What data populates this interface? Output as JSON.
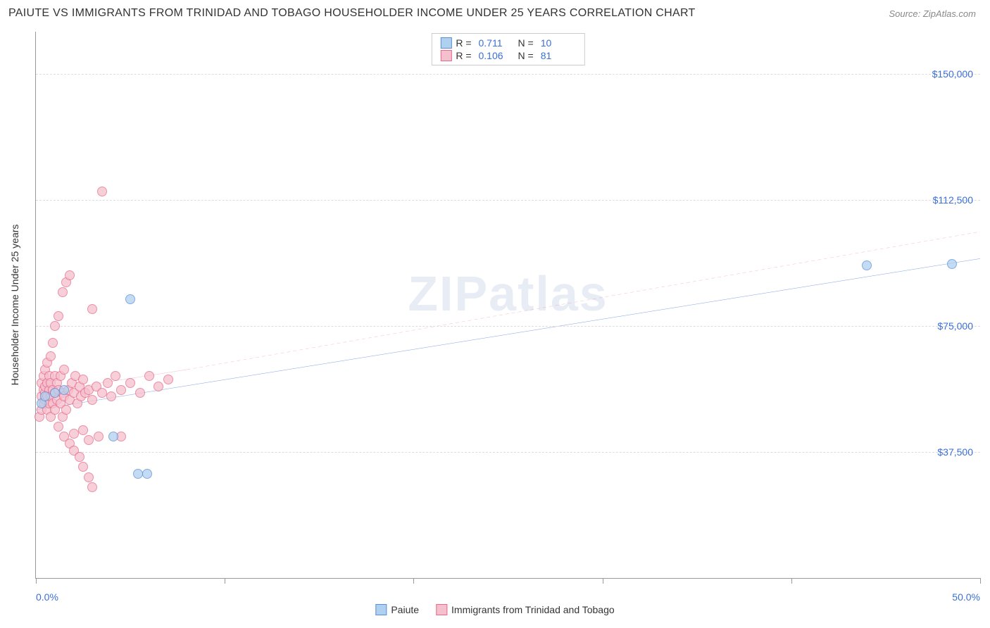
{
  "header": {
    "title": "PAIUTE VS IMMIGRANTS FROM TRINIDAD AND TOBAGO HOUSEHOLDER INCOME UNDER 25 YEARS CORRELATION CHART",
    "source_prefix": "Source: ",
    "source_name": "ZipAtlas.com"
  },
  "watermark": "ZIPatlas",
  "chart": {
    "type": "scatter",
    "background_color": "#ffffff",
    "grid_color": "#dddddd",
    "axis_color": "#999999",
    "label_color": "#3b6fd6",
    "text_color": "#333333",
    "yaxis_title": "Householder Income Under 25 years",
    "xlim": [
      0,
      50
    ],
    "ylim": [
      0,
      162500
    ],
    "xtick_positions": [
      0,
      10,
      20,
      30,
      40,
      50
    ],
    "xaxis_min_label": "0.0%",
    "xaxis_max_label": "50.0%",
    "yticks": [
      {
        "value": 37500,
        "label": "$37,500"
      },
      {
        "value": 75000,
        "label": "$75,000"
      },
      {
        "value": 112500,
        "label": "$112,500"
      },
      {
        "value": 150000,
        "label": "$150,000"
      }
    ],
    "series": [
      {
        "id": "paiute",
        "label": "Paiute",
        "fill_color": "#b0d0f0",
        "border_color": "#5a8fd6",
        "R": "0.711",
        "N": "10",
        "marker_size": 14,
        "trend": {
          "solid_from": [
            0,
            50000
          ],
          "solid_to": [
            50,
            95000
          ],
          "dash_from": null,
          "dash_to": null,
          "stroke": "#2b63d9",
          "stroke_width": 2
        },
        "points": [
          {
            "x": 0.3,
            "y": 52000
          },
          {
            "x": 0.5,
            "y": 54000
          },
          {
            "x": 1.0,
            "y": 55000
          },
          {
            "x": 1.5,
            "y": 56000
          },
          {
            "x": 4.1,
            "y": 42000
          },
          {
            "x": 5.0,
            "y": 83000
          },
          {
            "x": 5.4,
            "y": 31000
          },
          {
            "x": 5.9,
            "y": 31000
          },
          {
            "x": 44.0,
            "y": 93000
          },
          {
            "x": 48.5,
            "y": 93500
          }
        ]
      },
      {
        "id": "trinidad",
        "label": "Immigrants from Trinidad and Tobago",
        "fill_color": "#f5c0cd",
        "border_color": "#e86a8a",
        "R": "0.106",
        "N": "81",
        "marker_size": 14,
        "trend": {
          "solid_from": [
            0,
            55000
          ],
          "solid_to": [
            8,
            62000
          ],
          "dash_from": [
            8,
            62000
          ],
          "dash_to": [
            50,
            103000
          ],
          "stroke": "#e86a8a",
          "stroke_width": 1.5
        },
        "points": [
          {
            "x": 0.2,
            "y": 48000
          },
          {
            "x": 0.3,
            "y": 50000
          },
          {
            "x": 0.3,
            "y": 54000
          },
          {
            "x": 0.3,
            "y": 58000
          },
          {
            "x": 0.4,
            "y": 52000
          },
          {
            "x": 0.4,
            "y": 56000
          },
          {
            "x": 0.4,
            "y": 60000
          },
          {
            "x": 0.5,
            "y": 53000
          },
          {
            "x": 0.5,
            "y": 55000
          },
          {
            "x": 0.5,
            "y": 57000
          },
          {
            "x": 0.5,
            "y": 62000
          },
          {
            "x": 0.6,
            "y": 50000
          },
          {
            "x": 0.6,
            "y": 54000
          },
          {
            "x": 0.6,
            "y": 58000
          },
          {
            "x": 0.6,
            "y": 64000
          },
          {
            "x": 0.7,
            "y": 52000
          },
          {
            "x": 0.7,
            "y": 56000
          },
          {
            "x": 0.7,
            "y": 60000
          },
          {
            "x": 0.8,
            "y": 48000
          },
          {
            "x": 0.8,
            "y": 54000
          },
          {
            "x": 0.8,
            "y": 58000
          },
          {
            "x": 0.8,
            "y": 66000
          },
          {
            "x": 0.9,
            "y": 52000
          },
          {
            "x": 0.9,
            "y": 56000
          },
          {
            "x": 0.9,
            "y": 70000
          },
          {
            "x": 1.0,
            "y": 50000
          },
          {
            "x": 1.0,
            "y": 55000
          },
          {
            "x": 1.0,
            "y": 60000
          },
          {
            "x": 1.0,
            "y": 75000
          },
          {
            "x": 1.1,
            "y": 53000
          },
          {
            "x": 1.1,
            "y": 58000
          },
          {
            "x": 1.2,
            "y": 45000
          },
          {
            "x": 1.2,
            "y": 56000
          },
          {
            "x": 1.2,
            "y": 78000
          },
          {
            "x": 1.3,
            "y": 52000
          },
          {
            "x": 1.3,
            "y": 60000
          },
          {
            "x": 1.4,
            "y": 48000
          },
          {
            "x": 1.4,
            "y": 55000
          },
          {
            "x": 1.4,
            "y": 85000
          },
          {
            "x": 1.5,
            "y": 42000
          },
          {
            "x": 1.5,
            "y": 54000
          },
          {
            "x": 1.5,
            "y": 62000
          },
          {
            "x": 1.6,
            "y": 50000
          },
          {
            "x": 1.6,
            "y": 88000
          },
          {
            "x": 1.7,
            "y": 56000
          },
          {
            "x": 1.8,
            "y": 40000
          },
          {
            "x": 1.8,
            "y": 53000
          },
          {
            "x": 1.8,
            "y": 90000
          },
          {
            "x": 1.9,
            "y": 58000
          },
          {
            "x": 2.0,
            "y": 38000
          },
          {
            "x": 2.0,
            "y": 55000
          },
          {
            "x": 2.0,
            "y": 43000
          },
          {
            "x": 2.1,
            "y": 60000
          },
          {
            "x": 2.2,
            "y": 52000
          },
          {
            "x": 2.3,
            "y": 36000
          },
          {
            "x": 2.3,
            "y": 57000
          },
          {
            "x": 2.4,
            "y": 54000
          },
          {
            "x": 2.5,
            "y": 33000
          },
          {
            "x": 2.5,
            "y": 44000
          },
          {
            "x": 2.5,
            "y": 59000
          },
          {
            "x": 2.6,
            "y": 55000
          },
          {
            "x": 2.8,
            "y": 30000
          },
          {
            "x": 2.8,
            "y": 41000
          },
          {
            "x": 2.8,
            "y": 56000
          },
          {
            "x": 3.0,
            "y": 27000
          },
          {
            "x": 3.0,
            "y": 53000
          },
          {
            "x": 3.0,
            "y": 80000
          },
          {
            "x": 3.2,
            "y": 57000
          },
          {
            "x": 3.3,
            "y": 42000
          },
          {
            "x": 3.5,
            "y": 55000
          },
          {
            "x": 3.5,
            "y": 115000
          },
          {
            "x": 3.8,
            "y": 58000
          },
          {
            "x": 4.0,
            "y": 54000
          },
          {
            "x": 4.2,
            "y": 60000
          },
          {
            "x": 4.5,
            "y": 56000
          },
          {
            "x": 4.5,
            "y": 42000
          },
          {
            "x": 5.0,
            "y": 58000
          },
          {
            "x": 5.5,
            "y": 55000
          },
          {
            "x": 6.0,
            "y": 60000
          },
          {
            "x": 6.5,
            "y": 57000
          },
          {
            "x": 7.0,
            "y": 59000
          }
        ]
      }
    ]
  },
  "top_legend": {
    "rows": [
      {
        "series_idx": 0,
        "R_label": "R =",
        "N_label": "N ="
      },
      {
        "series_idx": 1,
        "R_label": "R =",
        "N_label": "N ="
      }
    ]
  }
}
